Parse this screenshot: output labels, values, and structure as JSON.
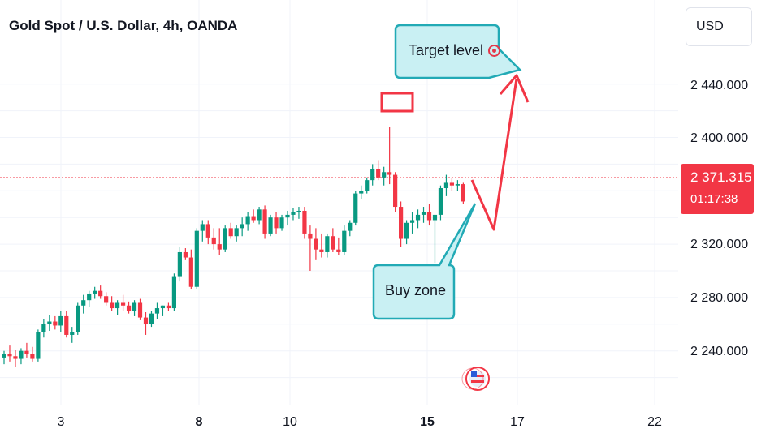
{
  "header": {
    "title": "Gold Spot / U.S. Dollar, 4h, OANDA"
  },
  "currency_button": {
    "label": "USD"
  },
  "price_axis": {
    "ticks": [
      "2 440.000",
      "2 400.000",
      "2 320.000",
      "2 280.000",
      "2 240.000"
    ]
  },
  "time_axis": {
    "ticks": [
      {
        "label": "3",
        "bold": false
      },
      {
        "label": "8",
        "bold": true
      },
      {
        "label": "10",
        "bold": false
      },
      {
        "label": "15",
        "bold": true
      },
      {
        "label": "17",
        "bold": false
      },
      {
        "label": "22",
        "bold": false
      }
    ]
  },
  "last_price": {
    "price": "2 371.315",
    "countdown": "01:17:38"
  },
  "annotations": {
    "target": {
      "label": "Target level"
    },
    "buy": {
      "label": "Buy zone"
    }
  },
  "colors": {
    "up": "#089981",
    "down": "#f23645",
    "callout_fill": "#c9f0f3",
    "callout_border": "#22aab5",
    "arrow": "#f23645"
  },
  "chart_data": {
    "type": "candlestick",
    "symbol": "Gold Spot / U.S. Dollar",
    "interval": "4h",
    "last": 2371.315,
    "candles": [
      [
        2255,
        2260,
        2250,
        2258
      ],
      [
        2258,
        2264,
        2252,
        2256
      ],
      [
        2256,
        2261,
        2248,
        2254
      ],
      [
        2254,
        2262,
        2250,
        2260
      ],
      [
        2260,
        2266,
        2255,
        2258
      ],
      [
        2258,
        2263,
        2252,
        2254
      ],
      [
        2254,
        2276,
        2252,
        2274
      ],
      [
        2274,
        2284,
        2270,
        2280
      ],
      [
        2280,
        2287,
        2275,
        2282
      ],
      [
        2282,
        2286,
        2276,
        2279
      ],
      [
        2279,
        2290,
        2274,
        2286
      ],
      [
        2286,
        2290,
        2270,
        2272
      ],
      [
        2272,
        2278,
        2266,
        2274
      ],
      [
        2274,
        2296,
        2272,
        2294
      ],
      [
        2294,
        2302,
        2288,
        2298
      ],
      [
        2298,
        2305,
        2293,
        2303
      ],
      [
        2303,
        2308,
        2299,
        2305
      ],
      [
        2305,
        2309,
        2299,
        2301
      ],
      [
        2301,
        2304,
        2294,
        2296
      ],
      [
        2296,
        2301,
        2290,
        2292
      ],
      [
        2292,
        2298,
        2287,
        2296
      ],
      [
        2296,
        2302,
        2290,
        2294
      ],
      [
        2294,
        2297,
        2288,
        2290
      ],
      [
        2290,
        2298,
        2286,
        2296
      ],
      [
        2296,
        2299,
        2283,
        2285
      ],
      [
        2285,
        2289,
        2272,
        2280
      ],
      [
        2280,
        2290,
        2278,
        2288
      ],
      [
        2288,
        2296,
        2284,
        2292
      ],
      [
        2292,
        2294,
        2286,
        2294
      ],
      [
        2294,
        2296,
        2290,
        2292
      ],
      [
        2292,
        2318,
        2290,
        2316
      ],
      [
        2316,
        2338,
        2312,
        2334
      ],
      [
        2334,
        2337,
        2328,
        2330
      ],
      [
        2330,
        2336,
        2306,
        2308
      ],
      [
        2308,
        2352,
        2306,
        2350
      ],
      [
        2350,
        2358,
        2342,
        2355
      ],
      [
        2355,
        2358,
        2340,
        2345
      ],
      [
        2345,
        2352,
        2336,
        2340
      ],
      [
        2340,
        2352,
        2332,
        2336
      ],
      [
        2336,
        2354,
        2334,
        2352
      ],
      [
        2352,
        2356,
        2344,
        2346
      ],
      [
        2346,
        2354,
        2342,
        2352
      ],
      [
        2352,
        2360,
        2346,
        2355
      ],
      [
        2355,
        2364,
        2350,
        2361
      ],
      [
        2361,
        2366,
        2356,
        2358
      ],
      [
        2358,
        2368,
        2355,
        2366
      ],
      [
        2366,
        2369,
        2344,
        2348
      ],
      [
        2348,
        2362,
        2346,
        2360
      ],
      [
        2360,
        2364,
        2348,
        2352
      ],
      [
        2352,
        2362,
        2350,
        2360
      ],
      [
        2360,
        2365,
        2354,
        2362
      ],
      [
        2362,
        2367,
        2358,
        2364
      ],
      [
        2364,
        2368,
        2359,
        2365
      ],
      [
        2365,
        2368,
        2344,
        2348
      ],
      [
        2348,
        2354,
        2320,
        2344
      ],
      [
        2344,
        2352,
        2328,
        2336
      ],
      [
        2336,
        2348,
        2330,
        2334
      ],
      [
        2334,
        2348,
        2330,
        2346
      ],
      [
        2346,
        2352,
        2334,
        2336
      ],
      [
        2336,
        2345,
        2332,
        2334
      ],
      [
        2334,
        2354,
        2332,
        2350
      ],
      [
        2350,
        2358,
        2346,
        2356
      ],
      [
        2356,
        2380,
        2354,
        2378
      ],
      [
        2378,
        2384,
        2374,
        2380
      ],
      [
        2380,
        2390,
        2378,
        2388
      ],
      [
        2388,
        2400,
        2384,
        2396
      ],
      [
        2396,
        2403,
        2388,
        2390
      ],
      [
        2390,
        2398,
        2384,
        2394
      ],
      [
        2394,
        2428,
        2385,
        2392
      ],
      [
        2392,
        2394,
        2364,
        2368
      ],
      [
        2368,
        2372,
        2338,
        2344
      ],
      [
        2344,
        2358,
        2340,
        2356
      ],
      [
        2356,
        2364,
        2348,
        2358
      ],
      [
        2358,
        2366,
        2352,
        2362
      ],
      [
        2362,
        2368,
        2356,
        2364
      ],
      [
        2364,
        2370,
        2354,
        2358
      ],
      [
        2358,
        2362,
        2326,
        2362
      ],
      [
        2362,
        2384,
        2358,
        2382
      ],
      [
        2382,
        2392,
        2376,
        2386
      ],
      [
        2386,
        2390,
        2380,
        2384
      ],
      [
        2384,
        2388,
        2380,
        2385
      ],
      [
        2385,
        2386,
        2370,
        2372
      ]
    ]
  }
}
